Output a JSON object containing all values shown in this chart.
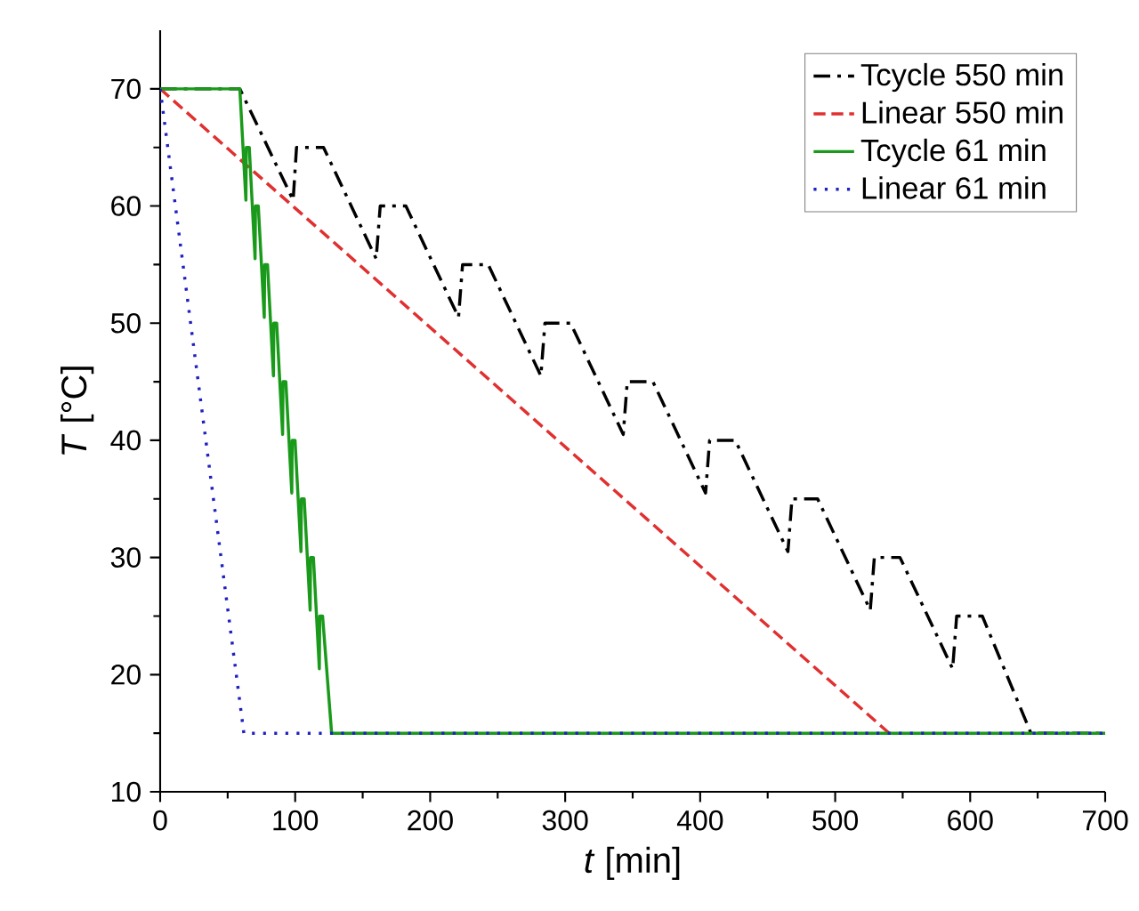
{
  "chart_data": {
    "type": "line",
    "xlabel": "*t* [min]",
    "ylabel": "*T* [°C]",
    "xlim": [
      0,
      700
    ],
    "xticks": [
      0,
      100,
      200,
      300,
      400,
      500,
      600,
      700
    ],
    "ylim": [
      10,
      75
    ],
    "yticks": [
      10,
      20,
      30,
      40,
      50,
      60,
      70
    ],
    "grid": false,
    "legend": "top right",
    "marker": "none",
    "series": [
      {
        "name": "Tcycle 550 min",
        "color": "#000000",
        "line_style": "dashdot",
        "x": [
          0,
          59,
          98.5,
          101,
          121,
          160,
          163,
          182,
          221,
          224,
          243,
          282,
          285,
          304,
          343,
          346,
          365,
          404,
          407,
          426,
          465,
          468,
          487,
          526,
          529,
          548,
          587,
          590,
          609,
          645,
          700
        ],
        "values": [
          70,
          70,
          60.5,
          65,
          65,
          55.5,
          60,
          60,
          50.5,
          55,
          55,
          45.5,
          50,
          50,
          40.5,
          45,
          45,
          35.5,
          40,
          40,
          30.5,
          35,
          35,
          25.5,
          30,
          30,
          20.5,
          25,
          25,
          15,
          15
        ]
      },
      {
        "name": "Linear 550 min",
        "color": "#e03030",
        "line_style": "dashed",
        "x": [
          0,
          540
        ],
        "values": [
          70,
          15
        ]
      },
      {
        "name": "Tcycle 61 min",
        "color": "#1a9a1a",
        "line_style": "solid",
        "x": [
          0,
          59,
          63.5,
          63.8,
          66,
          70.3,
          70.6,
          72.7,
          77.1,
          77.4,
          79.5,
          83.9,
          84.2,
          86.3,
          90.7,
          91,
          93.1,
          97.5,
          97.8,
          99.9,
          104.3,
          104.6,
          106.7,
          111.1,
          111.4,
          113.5,
          117.9,
          118.2,
          120.3,
          127,
          700
        ],
        "values": [
          70,
          70,
          60.5,
          65,
          65,
          55.5,
          60,
          60,
          50.5,
          55,
          55,
          45.5,
          50,
          50,
          40.5,
          45,
          45,
          35.5,
          40,
          40,
          30.5,
          35,
          35,
          25.5,
          30,
          30,
          20.5,
          25,
          25,
          15,
          15
        ]
      },
      {
        "name": "Linear 61 min",
        "color": "#2020c0",
        "line_style": "dotted",
        "x": [
          0,
          62,
          700
        ],
        "values": [
          70,
          15,
          15
        ]
      }
    ]
  }
}
